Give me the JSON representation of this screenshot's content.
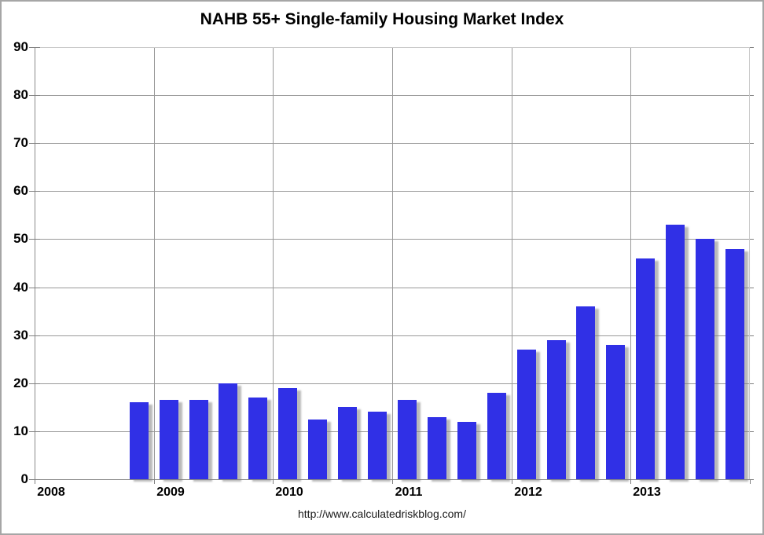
{
  "title": "NAHB 55+ Single-family Housing Market Index",
  "footer": {
    "url_text": "http://www.calculatedriskblog.com/"
  },
  "colors": {
    "bar": "#3030e6",
    "bar_shadow": "rgba(130,130,130,0.55)",
    "gridline": "#999999",
    "axis": "#8a8a8a",
    "plot_border": "#c9c9c9",
    "frame_border": "#a6a6a6",
    "text": "#000000",
    "footer_text": "#1a1a1a",
    "background": "#ffffff"
  },
  "chart_data": {
    "type": "bar",
    "title": "NAHB 55+ Single-family Housing Market Index",
    "xlabel": "",
    "ylabel": "",
    "ylim": [
      0,
      90
    ],
    "y_tick_step": 10,
    "y_tick_labels": [
      "0",
      "10",
      "20",
      "30",
      "40",
      "50",
      "60",
      "70",
      "80",
      "90"
    ],
    "x_tick_labels": [
      "2008",
      "2009",
      "2010",
      "2011",
      "2012",
      "2013"
    ],
    "grid": "both",
    "legend": "none",
    "bars_per_year": 4,
    "categories": [
      "2008 Q4",
      "2009 Q1",
      "2009 Q2",
      "2009 Q3",
      "2009 Q4",
      "2010 Q1",
      "2010 Q2",
      "2010 Q3",
      "2010 Q4",
      "2011 Q1",
      "2011 Q2",
      "2011 Q3",
      "2011 Q4",
      "2012 Q1",
      "2012 Q2",
      "2012 Q3",
      "2012 Q4",
      "2013 Q1",
      "2013 Q2",
      "2013 Q3",
      "2013 Q4"
    ],
    "values": [
      16,
      16.5,
      16.5,
      20,
      17,
      19,
      12.5,
      15,
      14,
      16.5,
      13,
      12,
      18,
      27,
      29,
      36,
      28,
      46,
      53,
      50,
      48
    ]
  }
}
